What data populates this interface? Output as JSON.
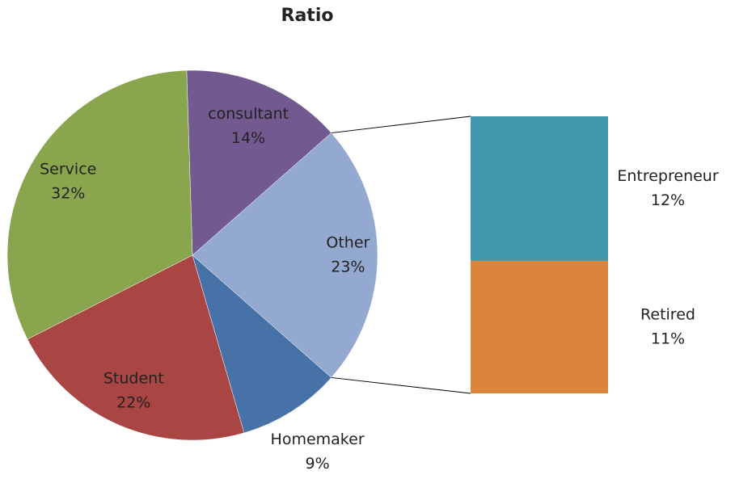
{
  "chart_data": {
    "type": "pie",
    "title": "Ratio",
    "categories": [
      "consultant",
      "Other",
      "Homemaker",
      "Student",
      "Service"
    ],
    "values": [
      14,
      23,
      9,
      22,
      32
    ],
    "value_labels": [
      "14%",
      "23%",
      "9%",
      "22%",
      "32%"
    ],
    "colors": [
      "#725a91",
      "#93a9d0",
      "#4672a8",
      "#a94542",
      "#89a54d"
    ],
    "breakdown": {
      "categories": [
        "Entrepreneur",
        "Retired"
      ],
      "values": [
        12,
        11
      ],
      "value_labels": [
        "12%",
        "11%"
      ],
      "colors": [
        "#4198af",
        "#db843d"
      ]
    }
  }
}
